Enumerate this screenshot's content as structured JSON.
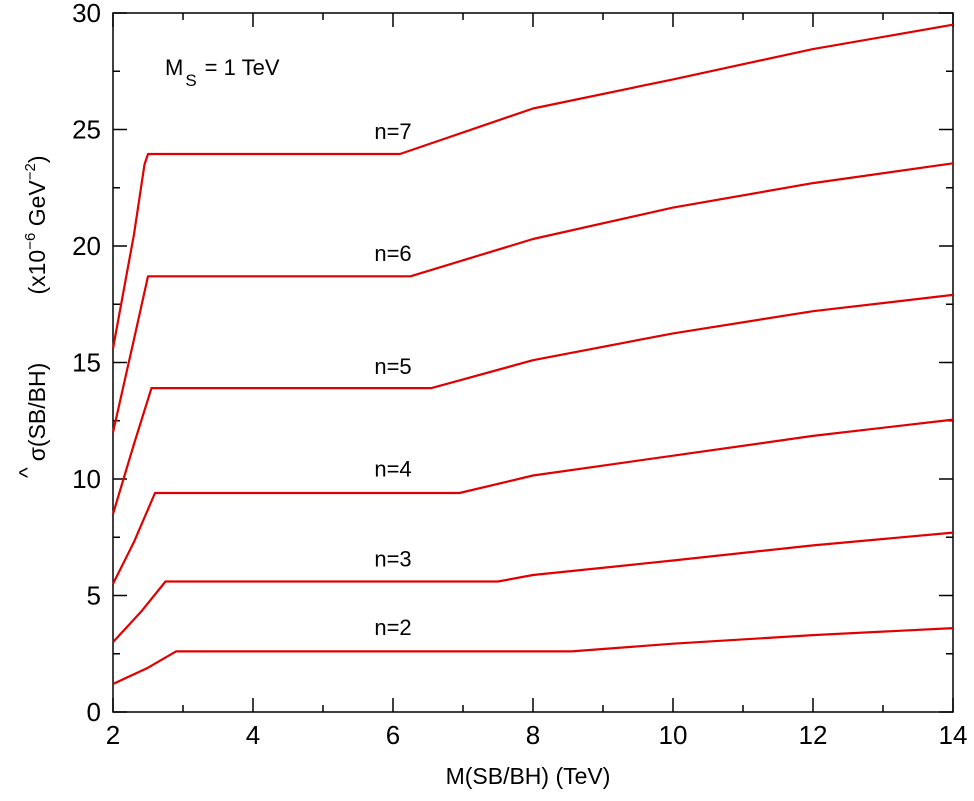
{
  "chart_data": {
    "type": "line",
    "xlabel": "M(SB/BH)   (TeV)",
    "ylabel_main": "σ(SB/BH)",
    "ylabel_hat": "^",
    "ylabel_unit_prefix": "(x10",
    "ylabel_unit_exp1": "−6",
    "ylabel_unit_mid": " GeV",
    "ylabel_unit_exp2": "−2",
    "ylabel_unit_suffix": ")",
    "annotation_M": "M",
    "annotation_sub": "S",
    "annotation_rest": "= 1 TeV",
    "xlim": [
      2,
      14
    ],
    "ylim": [
      0,
      30
    ],
    "x_ticks": [
      2,
      4,
      6,
      8,
      10,
      12,
      14
    ],
    "y_ticks": [
      0,
      5,
      10,
      15,
      20,
      25,
      30
    ],
    "x_tick_labels": [
      "2",
      "4",
      "6",
      "8",
      "10",
      "12",
      "14"
    ],
    "y_tick_labels": [
      "0",
      "5",
      "10",
      "15",
      "20",
      "25",
      "30"
    ],
    "line_color": "#e00000",
    "series": [
      {
        "name": "n=2",
        "label_pos": [
          6.0,
          3.3
        ],
        "points": [
          [
            2.0,
            1.2
          ],
          [
            2.5,
            1.9
          ],
          [
            2.9,
            2.6
          ],
          [
            8.55,
            2.6
          ],
          [
            10.0,
            2.93
          ],
          [
            12.0,
            3.3
          ],
          [
            14.0,
            3.6
          ]
        ]
      },
      {
        "name": "n=3",
        "label_pos": [
          6.0,
          6.25
        ],
        "points": [
          [
            2.0,
            3.0
          ],
          [
            2.4,
            4.3
          ],
          [
            2.75,
            5.6
          ],
          [
            7.5,
            5.6
          ],
          [
            8.0,
            5.88
          ],
          [
            10.0,
            6.5
          ],
          [
            12.0,
            7.15
          ],
          [
            14.0,
            7.7
          ]
        ]
      },
      {
        "name": "n=4",
        "label_pos": [
          6.0,
          10.1
        ],
        "points": [
          [
            2.0,
            5.5
          ],
          [
            2.3,
            7.3
          ],
          [
            2.6,
            9.4
          ],
          [
            6.95,
            9.4
          ],
          [
            8.0,
            10.15
          ],
          [
            10.0,
            11.0
          ],
          [
            12.0,
            11.85
          ],
          [
            14.0,
            12.55
          ]
        ]
      },
      {
        "name": "n=5",
        "label_pos": [
          6.0,
          14.5
        ],
        "points": [
          [
            2.0,
            8.5
          ],
          [
            2.3,
            11.5
          ],
          [
            2.55,
            13.9
          ],
          [
            6.55,
            13.9
          ],
          [
            8.0,
            15.1
          ],
          [
            10.0,
            16.25
          ],
          [
            12.0,
            17.2
          ],
          [
            14.0,
            17.9
          ]
        ]
      },
      {
        "name": "n=6",
        "label_pos": [
          6.0,
          19.35
        ],
        "points": [
          [
            2.0,
            12.0
          ],
          [
            2.3,
            16.0
          ],
          [
            2.5,
            18.7
          ],
          [
            6.25,
            18.7
          ],
          [
            8.0,
            20.3
          ],
          [
            10.0,
            21.65
          ],
          [
            12.0,
            22.7
          ],
          [
            14.0,
            23.55
          ]
        ]
      },
      {
        "name": "n=7",
        "label_pos": [
          6.0,
          24.6
        ],
        "points": [
          [
            2.0,
            15.6
          ],
          [
            2.3,
            20.5
          ],
          [
            2.45,
            23.5
          ],
          [
            2.5,
            23.95
          ],
          [
            6.1,
            23.95
          ],
          [
            8.0,
            25.9
          ],
          [
            10.0,
            27.15
          ],
          [
            12.0,
            28.45
          ],
          [
            14.0,
            29.5
          ]
        ]
      }
    ]
  }
}
